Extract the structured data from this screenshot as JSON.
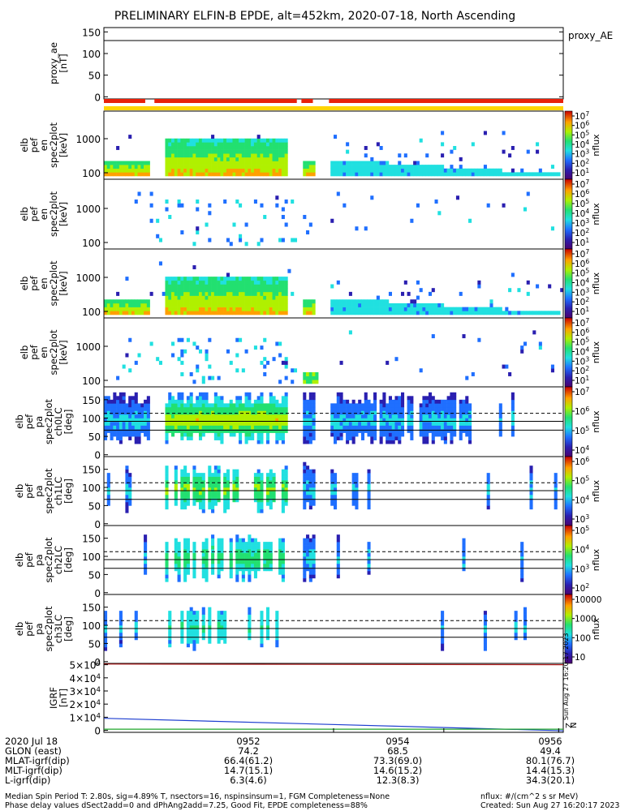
{
  "figure": {
    "title": "PRELIMINARY ELFIN-B EPDE, alt=452km, 2020-07-18, North Ascending",
    "right_label": "proxy_AE"
  },
  "chart_data": [
    {
      "id": "proxy_ae",
      "type": "line",
      "ylabel": [
        "proxy_ae",
        "[nT]"
      ],
      "yticks": [
        0,
        50,
        100,
        150
      ],
      "ytick_labels": [
        "0",
        "50",
        "100",
        "150"
      ],
      "ylim": [
        -5,
        160
      ],
      "series": [
        {
          "values": [
            130,
            130
          ]
        }
      ]
    },
    {
      "id": "status_bars",
      "type": "bar",
      "top_segments": [
        [
          0.0,
          0.09
        ],
        [
          0.11,
          0.42
        ],
        [
          0.43,
          0.455
        ],
        [
          0.49,
          1.0
        ]
      ],
      "top_color": "#e8200a",
      "bottom_color": "#ffd400"
    },
    {
      "id": "en_spec_0",
      "type": "heatmap",
      "ylabel": [
        "elb",
        "pef",
        "en",
        "spec2plot",
        "[keV]"
      ],
      "ytick_labels": [
        "100",
        "1000"
      ],
      "colorbar": {
        "label": "nflux",
        "ticks": [
          "10^1",
          "10^2",
          "10^3",
          "10^4",
          "10^5",
          "10^6",
          "10^7"
        ]
      }
    },
    {
      "id": "en_spec_1",
      "type": "heatmap",
      "ylabel": [
        "elb",
        "pef",
        "en",
        "spec2plot",
        "[keV]"
      ],
      "ytick_labels": [
        "100",
        "1000"
      ],
      "colorbar": {
        "label": "nflux",
        "ticks": [
          "10^1",
          "10^2",
          "10^3",
          "10^4",
          "10^5",
          "10^6",
          "10^7"
        ]
      }
    },
    {
      "id": "en_spec_2",
      "type": "heatmap",
      "ylabel": [
        "elb",
        "pef",
        "en",
        "spec2plot",
        "[keV]"
      ],
      "ytick_labels": [
        "100",
        "1000"
      ],
      "colorbar": {
        "label": "nflux",
        "ticks": [
          "10^1",
          "10^2",
          "10^3",
          "10^4",
          "10^5",
          "10^6",
          "10^7"
        ]
      }
    },
    {
      "id": "en_spec_3",
      "type": "heatmap",
      "ylabel": [
        "elb",
        "pef",
        "en",
        "spec2plot",
        "[keV]"
      ],
      "ytick_labels": [
        "100",
        "1000"
      ],
      "colorbar": {
        "label": "nflux",
        "ticks": [
          "10^1",
          "10^2",
          "10^3",
          "10^4",
          "10^5",
          "10^6",
          "10^7"
        ]
      }
    },
    {
      "id": "pa_ch0",
      "type": "heatmap",
      "ylabel": [
        "elb",
        "pef",
        "pa",
        "spec2plot",
        "ch0LC",
        "[deg]"
      ],
      "yticks": [
        0,
        50,
        100,
        150
      ],
      "ytick_labels": [
        "0",
        "50",
        "100",
        "150"
      ],
      "ylim": [
        -5,
        185
      ],
      "dashed_line": 113,
      "solid_lines": [
        91,
        67
      ],
      "colorbar": {
        "label": "nflux",
        "ticks": [
          "10^4",
          "10^5",
          "10^6",
          "10^7"
        ]
      }
    },
    {
      "id": "pa_ch1",
      "type": "heatmap",
      "ylabel": [
        "elb",
        "pef",
        "pa",
        "spec2plot",
        "ch1LC",
        "[deg]"
      ],
      "yticks": [
        0,
        50,
        100,
        150
      ],
      "ytick_labels": [
        "0",
        "50",
        "100",
        "150"
      ],
      "ylim": [
        -5,
        185
      ],
      "dashed_line": 113,
      "solid_lines": [
        91,
        67
      ],
      "colorbar": {
        "label": "nflux",
        "ticks": [
          "10^3",
          "10^4",
          "10^5",
          "10^6"
        ]
      }
    },
    {
      "id": "pa_ch2",
      "type": "heatmap",
      "ylabel": [
        "elb",
        "pef",
        "pa",
        "spec2plot",
        "ch2LC",
        "[deg]"
      ],
      "yticks": [
        0,
        50,
        100,
        150
      ],
      "ytick_labels": [
        "0",
        "50",
        "100",
        "150"
      ],
      "ylim": [
        -5,
        185
      ],
      "dashed_line": 113,
      "solid_lines": [
        91,
        67
      ],
      "colorbar": {
        "label": "nflux",
        "ticks": [
          "10^2",
          "10^3",
          "10^4",
          "10^5"
        ]
      }
    },
    {
      "id": "pa_ch3",
      "type": "heatmap",
      "ylabel": [
        "elb",
        "pef",
        "pa",
        "spec2plot",
        "ch3LC",
        "[deg]"
      ],
      "yticks": [
        0,
        50,
        100,
        150
      ],
      "ytick_labels": [
        "0",
        "50",
        "100",
        "150"
      ],
      "ylim": [
        -5,
        185
      ],
      "dashed_line": 113,
      "solid_lines": [
        91,
        67
      ],
      "colorbar": {
        "label": "nflux",
        "ticks": [
          "10",
          "100",
          "1000",
          "10000"
        ]
      }
    },
    {
      "id": "igrf",
      "type": "line",
      "ylabel": [
        "IGRF",
        "[nT]"
      ],
      "yticks": [
        0,
        10000,
        20000,
        30000,
        40000,
        50000
      ],
      "ytick_labels": [
        "0",
        "1×10^4",
        "2×10^4",
        "3×10^4",
        "4×10^4",
        "5×10^4"
      ],
      "ylim": [
        -1500,
        51000
      ],
      "series": [
        {
          "color": "#1f3fd0",
          "x": [
            0,
            1
          ],
          "values": [
            9200,
            -300
          ]
        },
        {
          "color": "#1fa52a",
          "x": [
            0,
            1
          ],
          "values": [
            900,
            900
          ]
        },
        {
          "color": "#b01e1e",
          "x": [
            0,
            1
          ],
          "values": [
            50500,
            50000
          ]
        }
      ],
      "legend_letters": [
        "Z",
        "N"
      ],
      "side_text": "Sun Aug 27 16:20:17 2023"
    }
  ],
  "xaxis": {
    "time_ticks": [
      "0952",
      "0954",
      "0956"
    ],
    "rows": [
      {
        "label": "2020 Jul 18",
        "values": [
          "0952",
          "0954",
          "0956"
        ]
      },
      {
        "label": "GLON (east)",
        "values": [
          "74.2",
          "68.5",
          "49.4"
        ]
      },
      {
        "label": "MLAT-igrf(dip)",
        "values": [
          "66.4(61.2)",
          "73.3(69.0)",
          "80.1(76.7)"
        ]
      },
      {
        "label": "MLT-igrf(dip)",
        "values": [
          "14.7(15.1)",
          "14.6(15.2)",
          "14.4(15.3)"
        ]
      },
      {
        "label": "L-igrf(dip)",
        "values": [
          "6.3(4.6)",
          "12.3(8.3)",
          "34.3(20.1)"
        ]
      }
    ]
  },
  "footer": {
    "left_line1": "Median Spin Period T: 2.80s, sig=4.89% T, nsectors=16, nspinsinsum=1, FGM Completeness=None",
    "left_line2": "Phase delay values dSect2add=0 and dPhAng2add=7.25, Good Fit, EPDE completeness=88%",
    "right_line1": "nflux: #/(cm^2 s sr MeV)",
    "right_line2": "Created: Sun Aug 27 16:20:17 2023"
  }
}
